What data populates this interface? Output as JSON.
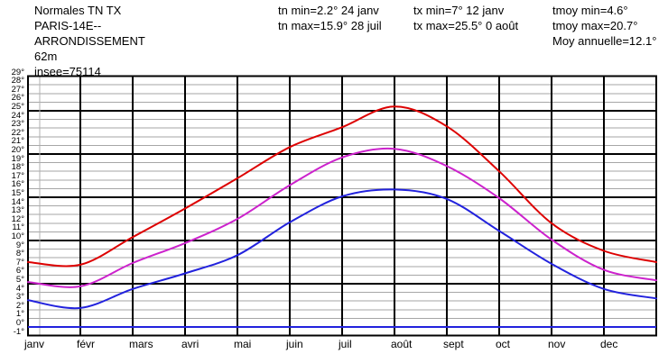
{
  "header": {
    "title_lines": [
      "Normales TN TX",
      "PARIS-14E--",
      "ARRONDISSEMENT",
      "62m",
      "insee=75114"
    ],
    "tn": {
      "min": "tn min=2.2° 24 janv",
      "max": "tn max=15.9° 28 juil"
    },
    "tx": {
      "min": "tx min=7° 12 janv",
      "max": "tx max=25.5° 0 août"
    },
    "tmoy": {
      "min": "tmoy min=4.6°",
      "max": "tmoy max=20.7°",
      "annual": "Moy annuelle=12.1°"
    }
  },
  "chart_data": {
    "type": "line",
    "title": "Normales TN TX — PARIS-14E-- ARRONDISSEMENT (62m, insee=75114)",
    "x_categories": [
      "janv",
      "févr",
      "mars",
      "avri",
      "mai",
      "juin",
      "juil",
      "août",
      "sept",
      "oct",
      "nov",
      "dec"
    ],
    "ylim": [
      -1,
      29
    ],
    "y_minor_step": 1,
    "y_major_step": 5,
    "y_suffix": "°",
    "grid": "on",
    "legend": "none",
    "series": [
      {
        "name": "tx",
        "color": "#dd0000",
        "values": [
          7.5,
          7.2,
          10.4,
          13.7,
          17.2,
          20.8,
          23.1,
          25.5,
          23.2,
          18.0,
          12.0,
          8.8,
          7.5
        ]
      },
      {
        "name": "tmoy",
        "color": "#cc22cc",
        "values": [
          5.2,
          4.7,
          7.4,
          9.7,
          12.5,
          16.4,
          19.6,
          20.6,
          18.6,
          14.9,
          10.1,
          6.6,
          5.4
        ]
      },
      {
        "name": "tn",
        "color": "#2222dd",
        "values": [
          3.1,
          2.2,
          4.4,
          6.2,
          8.3,
          12.1,
          15.1,
          15.9,
          14.8,
          11.1,
          7.3,
          4.4,
          3.3
        ]
      }
    ],
    "series_note": "13 samples per curve: value at the start of each month plus 31 déc",
    "reference_line": {
      "value": 0,
      "color": "#2222dd"
    },
    "annotations": {
      "tn_min": "2.2° 24 janv",
      "tn_max": "15.9° 28 juil",
      "tx_min": "7° 12 janv",
      "tx_max": "25.5° 0 août",
      "tmoy_min": "4.6°",
      "tmoy_max": "20.7°",
      "moy_annuelle": "12.1°"
    },
    "colors": {
      "minor_grid": "#a6a6a6",
      "major_grid": "#000000",
      "frame": "#000000"
    }
  }
}
